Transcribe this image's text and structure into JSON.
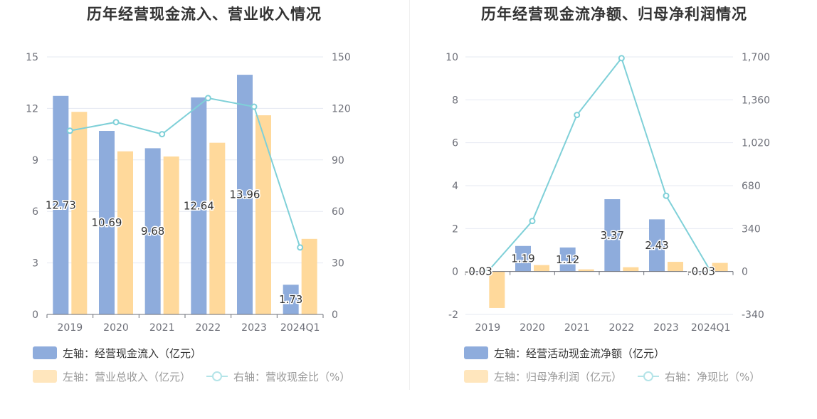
{
  "chart_data": [
    {
      "type": "bar",
      "title": "历年经营现金流入、营业收入情况",
      "categories": [
        "2019",
        "2020",
        "2021",
        "2022",
        "2023",
        "2024Q1"
      ],
      "y_left": {
        "ticks": [
          "0",
          "3",
          "6",
          "9",
          "12",
          "15"
        ],
        "range": [
          0,
          15
        ]
      },
      "y_right": {
        "ticks": [
          "0",
          "30",
          "60",
          "90",
          "120",
          "150"
        ],
        "range": [
          0,
          150
        ]
      },
      "grid": true,
      "legend_position": "bottom-left",
      "series": [
        {
          "name": "左轴：经营现金流入（亿元）",
          "axis": "left",
          "kind": "bar",
          "color": "#8eacdc",
          "values": [
            12.73,
            10.69,
            9.68,
            12.64,
            13.96,
            1.73
          ],
          "labels": [
            "12.73",
            "10.69",
            "9.68",
            "12.64",
            "13.96",
            "1.73"
          ]
        },
        {
          "name": "左轴：营业总收入（亿元）",
          "axis": "left",
          "kind": "bar",
          "color": "#ffd99b",
          "values": [
            11.8,
            9.5,
            9.2,
            10.0,
            11.6,
            4.4
          ]
        },
        {
          "name": "右轴：营收现金比（%）",
          "axis": "right",
          "kind": "line",
          "color": "#7fd0d8",
          "values": [
            107,
            112,
            105,
            126,
            121,
            39
          ]
        }
      ]
    },
    {
      "type": "bar",
      "title": "历年经营现金流净额、归母净利润情况",
      "categories": [
        "2019",
        "2020",
        "2021",
        "2022",
        "2023",
        "2024Q1"
      ],
      "y_left": {
        "ticks": [
          "-2",
          "0",
          "2",
          "4",
          "6",
          "8",
          "10"
        ],
        "range": [
          -2,
          10
        ]
      },
      "y_right": {
        "ticks": [
          "-340",
          "0",
          "340",
          "680",
          "1,020",
          "1,360",
          "1,700"
        ],
        "range": [
          -340,
          1700
        ]
      },
      "grid": true,
      "legend_position": "bottom-left",
      "series": [
        {
          "name": "左轴：经营活动现金流净额（亿元）",
          "axis": "left",
          "kind": "bar",
          "color": "#8eacdc",
          "values": [
            -0.03,
            1.19,
            1.12,
            3.37,
            2.43,
            -0.03
          ],
          "labels": [
            "-0.03",
            "1.19",
            "1.12",
            "3.37",
            "2.43",
            "-0.03"
          ]
        },
        {
          "name": "左轴：归母净利润（亿元）",
          "axis": "left",
          "kind": "bar",
          "color": "#ffd99b",
          "values": [
            -1.7,
            0.3,
            0.1,
            0.2,
            0.45,
            0.4
          ]
        },
        {
          "name": "右轴：净现比（%）",
          "axis": "right",
          "kind": "line",
          "color": "#7fd0d8",
          "values": [
            0,
            400,
            1240,
            1690,
            600,
            0
          ]
        }
      ]
    }
  ]
}
